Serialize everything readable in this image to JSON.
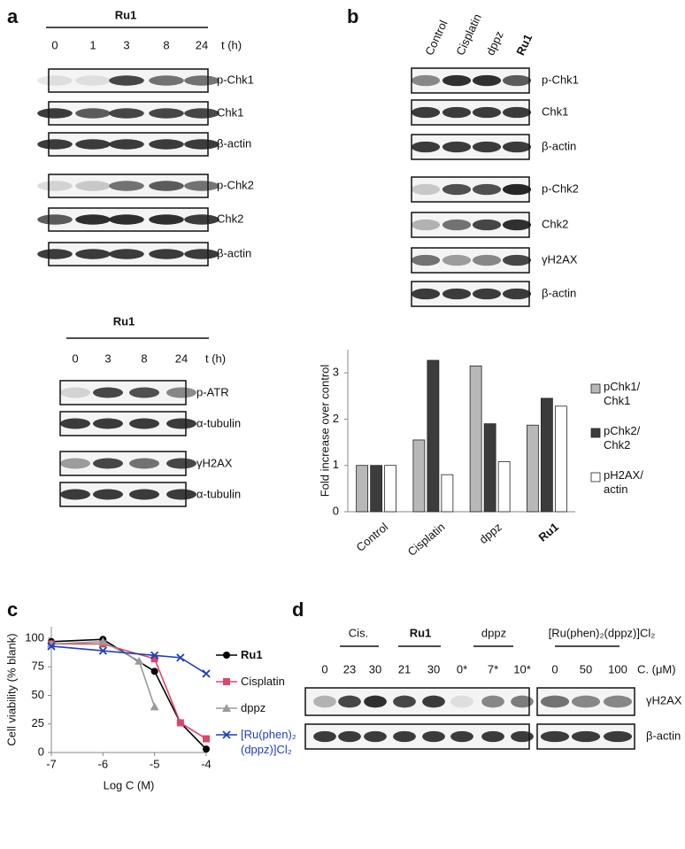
{
  "panel_labels": [
    "a",
    "b",
    "c",
    "d"
  ],
  "panel_a": {
    "top": {
      "header": "Ru1",
      "times": [
        "0",
        "1",
        "3",
        "8",
        "24"
      ],
      "time_unit": "t (h)",
      "blots": [
        "p-Chk1",
        "Chk1",
        "β-actin",
        "p-Chk2",
        "Chk2",
        "β-actin"
      ]
    },
    "bottom": {
      "header": "Ru1",
      "times": [
        "0",
        "3",
        "8",
        "24"
      ],
      "time_unit": "t (h)",
      "blots": [
        "p-ATR",
        "α-tubulin",
        "γH2AX",
        "α-tubulin"
      ]
    }
  },
  "panel_b": {
    "lanes": [
      "Control",
      "Cisplatin",
      "dppz",
      "Ru1"
    ],
    "blots": [
      "p-Chk1",
      "Chk1",
      "β-actin",
      "p-Chk2",
      "Chk2",
      "γH2AX",
      "β-actin"
    ]
  },
  "panel_d": {
    "groups": [
      "Cis.",
      "Ru1",
      "dppz",
      "[Ru(phen)₂(dppz)]Cl₂"
    ],
    "concentrations": [
      "0",
      "23",
      "30",
      "21",
      "30",
      "0*",
      "7*",
      "10*",
      "0",
      "50",
      "100"
    ],
    "unit": "C. (μM)",
    "blots": [
      "γH2AX",
      "β-actin"
    ]
  },
  "chart_data": [
    {
      "type": "bar",
      "y_label": "Fold increase over control",
      "categories": [
        "Control",
        "Cisplatin",
        "dppz",
        "Ru1"
      ],
      "series": [
        {
          "name": "pChk1/ Chk1",
          "color": "#b8b8b8",
          "values": [
            1,
            1.55,
            3.15,
            1.87
          ]
        },
        {
          "name": "pChk2/ Chk2",
          "color": "#3c3c3c",
          "values": [
            1,
            3.27,
            1.9,
            2.45
          ]
        },
        {
          "name": "pH2AX/ actin",
          "color": "#ffffff",
          "values": [
            1,
            0.8,
            1.08,
            2.28
          ]
        }
      ],
      "ylim": [
        0,
        3.5
      ],
      "yticks": [
        0,
        1,
        2,
        3
      ],
      "grid": false,
      "legend": "right"
    },
    {
      "type": "line",
      "x_label": "Log C (M)",
      "y_label": "Cell viability (% blank)",
      "series": [
        {
          "name": "Ru1",
          "color": "#000000",
          "marker": "circle",
          "x": [
            -7,
            -6,
            -5,
            -4.5,
            -4
          ],
          "values": [
            97,
            99,
            71,
            26,
            3
          ]
        },
        {
          "name": "Cisplatin",
          "color": "#d9476b",
          "marker": "square",
          "x": [
            -7,
            -6,
            -5,
            -4.5,
            -4
          ],
          "values": [
            95,
            95,
            82,
            26,
            12
          ]
        },
        {
          "name": "dppz",
          "color": "#9a9a9a",
          "marker": "triangle",
          "x": [
            -7,
            -6,
            -5.3,
            -5
          ],
          "values": [
            95,
            97,
            80,
            40
          ]
        },
        {
          "name": "[Ru(phen)₂ (dppz)]Cl₂",
          "color": "#1f3fbf",
          "marker": "x",
          "x": [
            -7,
            -6,
            -5,
            -4.5,
            -4
          ],
          "values": [
            93,
            89,
            85,
            83,
            69
          ]
        }
      ],
      "xlim": [
        -7,
        -4
      ],
      "xticks": [
        -7,
        -6,
        -5,
        -4
      ],
      "ylim": [
        0,
        110
      ],
      "yticks": [
        0,
        25,
        50,
        75,
        100
      ],
      "grid": false,
      "legend": "right"
    }
  ]
}
